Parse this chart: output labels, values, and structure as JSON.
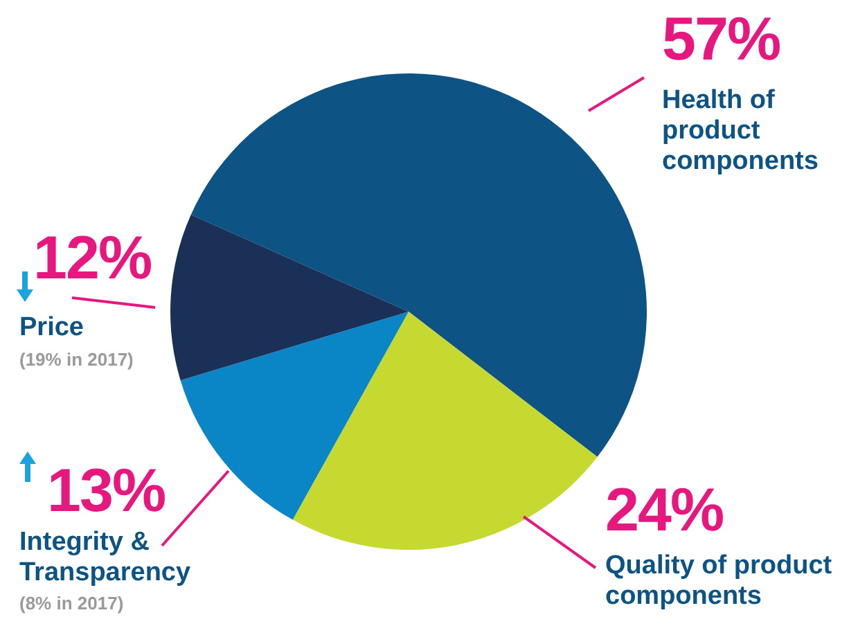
{
  "chart_data": {
    "type": "pie",
    "categories": [
      "Health of product components",
      "Quality of product components",
      "Integrity & Transparency",
      "Price"
    ],
    "values": [
      57,
      24,
      13,
      12
    ],
    "value_labels": [
      "57%",
      "24%",
      "13%",
      "12%"
    ],
    "colors": [
      "#0d5485",
      "#c5d930",
      "#0a85c6",
      "#1b3057"
    ],
    "annotations": [
      "(19% in 2017)",
      "(8% in 2017)"
    ],
    "legend": false
  }
}
